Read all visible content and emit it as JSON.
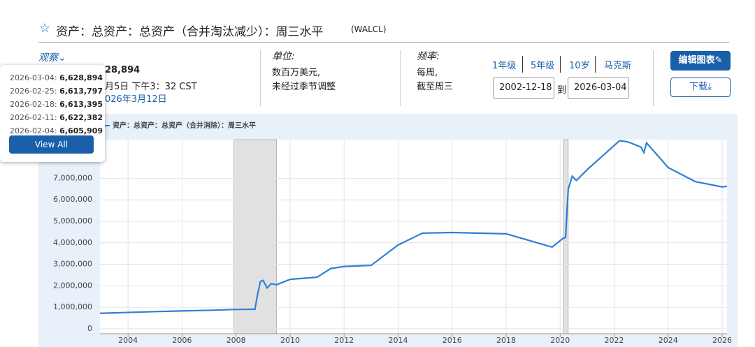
{
  "header": {
    "title": "资产：总资产：总资产（合并淘汰减少）：周三水平",
    "code": "(WALCL)"
  },
  "observation": {
    "label": "观察",
    "value_partial": "28,894",
    "updated_partial": "月5日 下午3：32 CST",
    "next_partial": "026年3月12日",
    "popup": [
      {
        "date": "2026-03-04:",
        "value": "6,628,894"
      },
      {
        "date": "2026-02-25:",
        "value": "6,613,797"
      },
      {
        "date": "2026-02-18:",
        "value": "6,613,395"
      },
      {
        "date": "2026-02-11:",
        "value": "6,622,382"
      },
      {
        "date": "2026-02-04:",
        "value": "6,605,909"
      }
    ],
    "view_all": "View All"
  },
  "units": {
    "label": "单位:",
    "lines": [
      "数百万美元,",
      "未经过季节调整"
    ]
  },
  "frequency": {
    "label": "频率:",
    "lines": [
      "每周,",
      "截至周三"
    ]
  },
  "ranges": [
    "1年级",
    "5年级",
    "10岁",
    "马克斯"
  ],
  "date_range": {
    "start": "2002-12-18",
    "sep": "到",
    "end": "2026-03-04"
  },
  "buttons": {
    "edit": "编辑图表",
    "download": "下载"
  },
  "chart_data": {
    "type": "line",
    "series": [
      {
        "name": "资产：总资产：总资产（合并消除）：周三水平",
        "color": "#2f7fd6",
        "x": [
          2002.96,
          2005,
          2007,
          2008,
          2008.7,
          2008.78,
          2008.9,
          2009.0,
          2009.15,
          2009.3,
          2009.5,
          2010,
          2011,
          2011.5,
          2012,
          2013,
          2014,
          2014.9,
          2016,
          2018,
          2019.7,
          2020.1,
          2020.2,
          2020.3,
          2020.45,
          2020.6,
          2021,
          2022.2,
          2022.5,
          2023.0,
          2023.1,
          2023.2,
          2024,
          2025,
          2026,
          2026.18
        ],
        "values": [
          720000,
          800000,
          860000,
          900000,
          910000,
          1500000,
          2200000,
          2250000,
          1900000,
          2100000,
          2050000,
          2300000,
          2400000,
          2800000,
          2900000,
          2950000,
          3900000,
          4450000,
          4480000,
          4420000,
          3800000,
          4200000,
          4250000,
          6500000,
          7100000,
          6900000,
          7400000,
          8750000,
          8700000,
          8450000,
          8200000,
          8650000,
          7500000,
          6850000,
          6600000,
          6628894
        ]
      }
    ],
    "xlim": [
      2002.96,
      2026.18
    ],
    "xticks": [
      2004,
      2006,
      2008,
      2010,
      2012,
      2014,
      2016,
      2018,
      2020,
      2022,
      2024,
      2026
    ],
    "ylim": [
      -230000,
      8800000
    ],
    "yticks": [
      0,
      {
        "value": 1000000,
        "label": "1,000,000"
      },
      {
        "value": 2000000,
        "label": "2,000,000"
      },
      {
        "value": 3000000,
        "label": "3,000,000"
      },
      {
        "value": 4000000,
        "label": "4,000,000"
      },
      {
        "value": 5000000,
        "label": "5,000,000"
      },
      {
        "value": 6000000,
        "label": "6,000,000"
      },
      {
        "value": 7000000,
        "label": "7,000,000"
      }
    ],
    "recessions": [
      [
        2007.92,
        2009.5
      ],
      [
        2020.12,
        2020.3
      ]
    ],
    "grid": true
  }
}
